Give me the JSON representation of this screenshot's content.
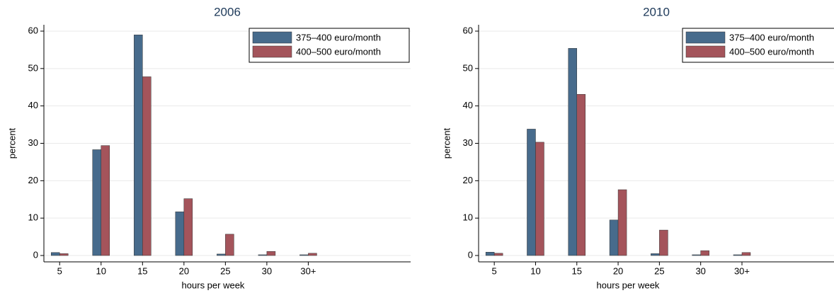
{
  "chart_data": [
    {
      "type": "bar",
      "title": "2006",
      "xlabel": "hours per week",
      "ylabel": "percent",
      "categories": [
        "5",
        "10",
        "15",
        "20",
        "25",
        "30",
        "30+"
      ],
      "series": [
        {
          "name": "375–400 euro/month",
          "color": "#476b8c",
          "values": [
            0.8,
            28.3,
            59,
            11.7,
            0.4,
            0.2,
            0.2
          ]
        },
        {
          "name": "400–500 euro/month",
          "color": "#a4545b",
          "values": [
            0.5,
            29.4,
            47.8,
            15.2,
            5.7,
            1.1,
            0.6
          ]
        }
      ],
      "ylim": [
        -1.7,
        61.7
      ],
      "yticks": [
        0,
        10,
        20,
        30,
        40,
        50,
        60
      ],
      "grid": true,
      "legend": "top-right"
    },
    {
      "type": "bar",
      "title": "2010",
      "xlabel": "hours per week",
      "ylabel": "percent",
      "categories": [
        "5",
        "10",
        "15",
        "20",
        "25",
        "30",
        "30+"
      ],
      "series": [
        {
          "name": "375–400 euro/month",
          "color": "#476b8c",
          "values": [
            0.9,
            33.8,
            55.4,
            9.5,
            0.5,
            0.2,
            0.2
          ]
        },
        {
          "name": "400–500 euro/month",
          "color": "#a4545b",
          "values": [
            0.6,
            30.3,
            43.1,
            17.6,
            6.8,
            1.3,
            0.8
          ]
        }
      ],
      "ylim": [
        -1.7,
        61.7
      ],
      "yticks": [
        0,
        10,
        20,
        30,
        40,
        50,
        60
      ],
      "grid": true,
      "legend": "top-right"
    }
  ]
}
